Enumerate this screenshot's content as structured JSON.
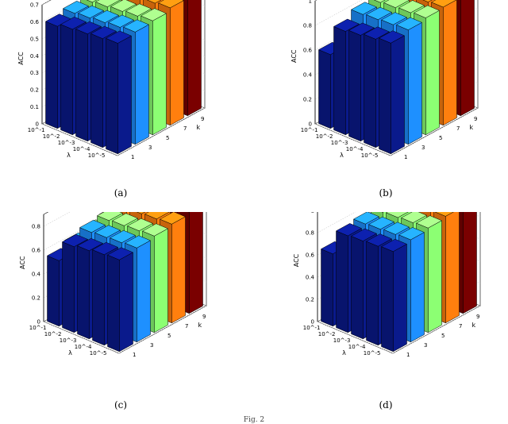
{
  "figure_caption": "Fig. 2",
  "chart_data": [
    {
      "type": "bar3d",
      "panel": "(a)",
      "zlabel": "ACC",
      "xlabel": "λ",
      "ylabel": "k",
      "lambda_ticks": [
        "10^-5",
        "10^-4",
        "10^-3",
        "10^-2",
        "10^-1"
      ],
      "k_ticks": [
        "1",
        "3",
        "5",
        "7",
        "9"
      ],
      "zticks": [
        "0",
        "0.1",
        "0.2",
        "0.3",
        "0.4",
        "0.5",
        "0.6",
        "0.7"
      ],
      "zlim": [
        0,
        0.7
      ],
      "colors": [
        "#0a1a8c",
        "#1e90ff",
        "#8cff73",
        "#ff7f0e",
        "#7a0000"
      ],
      "series": [
        {
          "name": "1",
          "values": [
            0.65,
            0.64,
            0.63,
            0.62,
            0.6
          ]
        },
        {
          "name": "3",
          "values": [
            0.66,
            0.65,
            0.64,
            0.63,
            0.62
          ]
        },
        {
          "name": "5",
          "values": [
            0.67,
            0.66,
            0.65,
            0.64,
            0.63
          ]
        },
        {
          "name": "7",
          "values": [
            0.69,
            0.68,
            0.67,
            0.66,
            0.65
          ]
        },
        {
          "name": "9",
          "values": [
            0.7,
            0.69,
            0.68,
            0.67,
            0.66
          ]
        }
      ]
    },
    {
      "type": "bar3d",
      "panel": "(b)",
      "zlabel": "ACC",
      "xlabel": "λ",
      "ylabel": "k",
      "lambda_ticks": [
        "10^-5",
        "10^-4",
        "10^-3",
        "10^-2",
        "10^-1"
      ],
      "k_ticks": [
        "1",
        "3",
        "5",
        "7",
        "9"
      ],
      "zticks": [
        "0",
        "0.2",
        "0.4",
        "0.6",
        "0.8",
        "1"
      ],
      "zlim": [
        0,
        1
      ],
      "colors": [
        "#0a1a8c",
        "#1e90ff",
        "#8cff73",
        "#ff7f0e",
        "#7a0000"
      ],
      "series": [
        {
          "name": "1",
          "values": [
            0.9,
            0.88,
            0.86,
            0.84,
            0.6
          ]
        },
        {
          "name": "3",
          "values": [
            0.93,
            0.92,
            0.91,
            0.9,
            0.7
          ]
        },
        {
          "name": "5",
          "values": [
            0.95,
            0.94,
            0.93,
            0.92,
            0.75
          ]
        },
        {
          "name": "7",
          "values": [
            0.96,
            0.95,
            0.94,
            0.93,
            0.78
          ]
        },
        {
          "name": "9",
          "values": [
            0.97,
            0.96,
            0.95,
            0.94,
            0.8
          ]
        }
      ]
    },
    {
      "type": "bar3d",
      "panel": "(c)",
      "zlabel": "ACC",
      "xlabel": "λ",
      "ylabel": "k",
      "lambda_ticks": [
        "10^-5",
        "10^-4",
        "10^-3",
        "10^-2",
        "10^-1"
      ],
      "k_ticks": [
        "1",
        "3",
        "5",
        "7",
        "9"
      ],
      "zticks": [
        "0",
        "0.2",
        "0.4",
        "0.6",
        "0.8"
      ],
      "zlim": [
        0,
        0.9
      ],
      "colors": [
        "#0a1a8c",
        "#1e90ff",
        "#8cff73",
        "#ff7f0e",
        "#7a0000"
      ],
      "series": [
        {
          "name": "1",
          "values": [
            0.77,
            0.76,
            0.74,
            0.72,
            0.55
          ]
        },
        {
          "name": "3",
          "values": [
            0.79,
            0.78,
            0.77,
            0.76,
            0.6
          ]
        },
        {
          "name": "5",
          "values": [
            0.81,
            0.8,
            0.79,
            0.78,
            0.63
          ]
        },
        {
          "name": "7",
          "values": [
            0.83,
            0.82,
            0.81,
            0.8,
            0.66
          ]
        },
        {
          "name": "9",
          "values": [
            0.85,
            0.84,
            0.83,
            0.82,
            0.68
          ]
        }
      ]
    },
    {
      "type": "bar3d",
      "panel": "(d)",
      "zlabel": "ACC",
      "xlabel": "λ",
      "ylabel": "k",
      "lambda_ticks": [
        "10^-5",
        "10^-4",
        "10^-3",
        "10^-2",
        "10^-1"
      ],
      "k_ticks": [
        "1",
        "3",
        "5",
        "7",
        "9"
      ],
      "zticks": [
        "0",
        "0.2",
        "0.4",
        "0.6",
        "0.8",
        "1"
      ],
      "zlim": [
        0,
        1
      ],
      "colors": [
        "#0a1a8c",
        "#1e90ff",
        "#8cff73",
        "#ff7f0e",
        "#7a0000"
      ],
      "series": [
        {
          "name": "1",
          "values": [
            0.9,
            0.89,
            0.88,
            0.87,
            0.65
          ]
        },
        {
          "name": "3",
          "values": [
            0.92,
            0.91,
            0.9,
            0.89,
            0.7
          ]
        },
        {
          "name": "5",
          "values": [
            0.94,
            0.93,
            0.92,
            0.91,
            0.74
          ]
        },
        {
          "name": "7",
          "values": [
            0.96,
            0.95,
            0.94,
            0.93,
            0.78
          ]
        },
        {
          "name": "9",
          "values": [
            0.98,
            0.97,
            0.96,
            0.95,
            0.8
          ]
        }
      ]
    }
  ]
}
